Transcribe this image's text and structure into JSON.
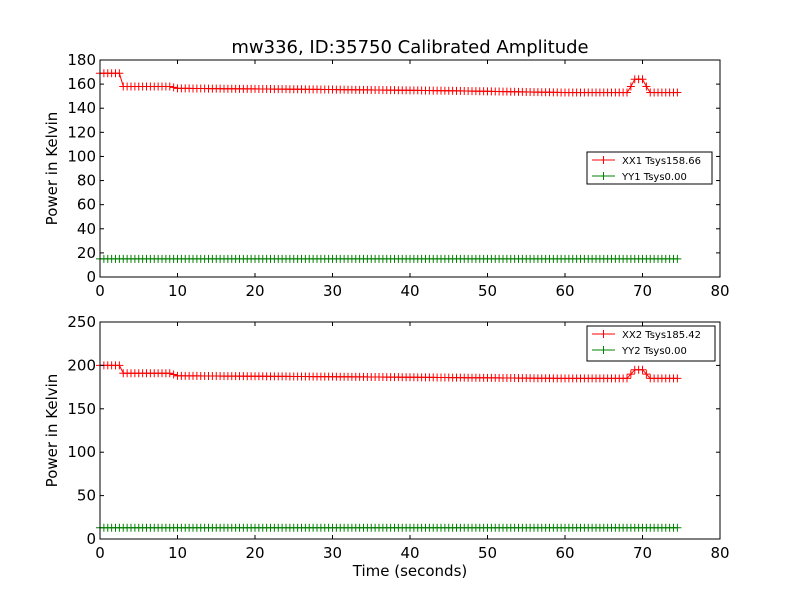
{
  "title": "mw336, ID:35750 Calibrated Amplitude",
  "colors": {
    "xx": "#ff0000",
    "yy": "#008000",
    "frame": "#000000"
  },
  "chart_data": [
    {
      "type": "line",
      "marker": "+",
      "title": "mw336, ID:35750 Calibrated Amplitude",
      "xlabel": "",
      "ylabel": "Power in Kelvin",
      "xlim": [
        0,
        80
      ],
      "ylim": [
        0,
        180
      ],
      "xticks": [
        "0",
        "10",
        "20",
        "30",
        "40",
        "50",
        "60",
        "70",
        "80"
      ],
      "yticks": [
        "0",
        "20",
        "40",
        "60",
        "80",
        "100",
        "120",
        "140",
        "160",
        "180"
      ],
      "grid": false,
      "legend_position": "right",
      "series": [
        {
          "name": "XX1 Tsys158.66",
          "color": "#ff0000",
          "points": [
            [
              0,
              169
            ],
            [
              2.5,
              169
            ],
            [
              3,
              158
            ],
            [
              9,
              158
            ],
            [
              10,
              156.5
            ],
            [
              30,
              155.5
            ],
            [
              45,
              154.5
            ],
            [
              60,
              153
            ],
            [
              68,
              153
            ],
            [
              68.5,
              158
            ],
            [
              69,
              164
            ],
            [
              70,
              164
            ],
            [
              70.5,
              158
            ],
            [
              71,
              153
            ],
            [
              74.5,
              153
            ]
          ]
        },
        {
          "name": "YY1 Tsys0.00",
          "color": "#008000",
          "points": [
            [
              0,
              15
            ],
            [
              74.5,
              15
            ]
          ]
        }
      ]
    },
    {
      "type": "line",
      "marker": "+",
      "title": "",
      "xlabel": "Time (seconds)",
      "ylabel": "Power in Kelvin",
      "xlim": [
        0,
        80
      ],
      "ylim": [
        0,
        250
      ],
      "xticks": [
        "0",
        "10",
        "20",
        "30",
        "40",
        "50",
        "60",
        "70",
        "80"
      ],
      "yticks": [
        "0",
        "50",
        "100",
        "150",
        "200",
        "250"
      ],
      "grid": false,
      "legend_position": "top-right",
      "series": [
        {
          "name": "XX2 Tsys185.42",
          "color": "#ff0000",
          "points": [
            [
              0,
              200
            ],
            [
              2.5,
              200
            ],
            [
              3,
              191
            ],
            [
              9,
              191
            ],
            [
              10,
              188
            ],
            [
              30,
              187
            ],
            [
              45,
              186
            ],
            [
              60,
              185
            ],
            [
              68,
              185
            ],
            [
              68.5,
              190
            ],
            [
              69,
              195
            ],
            [
              70,
              195
            ],
            [
              70.5,
              190
            ],
            [
              71,
              185
            ],
            [
              74.5,
              185
            ]
          ]
        },
        {
          "name": "YY2 Tsys0.00",
          "color": "#008000",
          "points": [
            [
              0,
              13
            ],
            [
              74.5,
              13
            ]
          ]
        }
      ]
    }
  ]
}
